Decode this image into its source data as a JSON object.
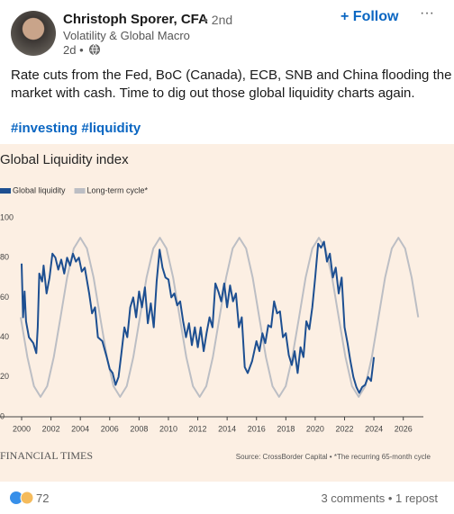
{
  "post": {
    "author": "Christoph Sporer, CFA",
    "degree": "• 2nd",
    "headline": "Volatility & Global Macro",
    "time": "2d •",
    "follow": "+ Follow",
    "text": [
      "Rate cuts from the Fed, BoC (Canada), ECB, SNB and China flooding the",
      "market with cash. Time to dig out those global liquidity charts again."
    ],
    "hashtags": "#investing #liquidity",
    "reactions": 72,
    "engagement": "3 comments • 1 repost"
  },
  "chart_data": {
    "type": "line",
    "title": "Global Liquidity index",
    "xlim": [
      2000,
      2027
    ],
    "ylim": [
      0,
      100
    ],
    "xticks": [
      2000,
      2002,
      2004,
      2006,
      2008,
      2010,
      2012,
      2014,
      2016,
      2018,
      2020,
      2022,
      2024,
      2026
    ],
    "yticks": [
      0,
      20,
      40,
      60,
      80,
      100
    ],
    "grid": false,
    "series": [
      {
        "name": "Global liquidity",
        "color": "#1d4f91",
        "x": [
          2000.0,
          2000.1,
          2000.2,
          2000.3,
          2000.5,
          2000.8,
          2001.0,
          2001.1,
          2001.2,
          2001.4,
          2001.5,
          2001.7,
          2001.9,
          2002.1,
          2002.3,
          2002.5,
          2002.7,
          2002.9,
          2003.1,
          2003.3,
          2003.5,
          2003.7,
          2003.9,
          2004.1,
          2004.3,
          2004.6,
          2004.8,
          2005.0,
          2005.2,
          2005.5,
          2005.8,
          2006.0,
          2006.2,
          2006.4,
          2006.6,
          2006.8,
          2007.0,
          2007.2,
          2007.4,
          2007.6,
          2007.8,
          2008.0,
          2008.2,
          2008.4,
          2008.6,
          2008.8,
          2009.0,
          2009.2,
          2009.4,
          2009.6,
          2009.8,
          2010.0,
          2010.2,
          2010.4,
          2010.6,
          2010.8,
          2011.0,
          2011.2,
          2011.4,
          2011.6,
          2011.8,
          2012.0,
          2012.2,
          2012.4,
          2012.6,
          2012.8,
          2013.0,
          2013.2,
          2013.4,
          2013.6,
          2013.8,
          2014.0,
          2014.2,
          2014.4,
          2014.6,
          2014.8,
          2015.0,
          2015.2,
          2015.4,
          2015.7,
          2016.0,
          2016.2,
          2016.4,
          2016.6,
          2016.8,
          2017.0,
          2017.2,
          2017.4,
          2017.6,
          2017.8,
          2018.0,
          2018.2,
          2018.4,
          2018.6,
          2018.8,
          2019.0,
          2019.2,
          2019.4,
          2019.6,
          2019.8,
          2020.0,
          2020.2,
          2020.4,
          2020.6,
          2020.8,
          2021.0,
          2021.2,
          2021.4,
          2021.6,
          2021.8,
          2022.0,
          2022.2,
          2022.4,
          2022.6,
          2022.8,
          2023.0,
          2023.2,
          2023.4,
          2023.6,
          2023.8,
          2024.0
        ],
        "values": [
          77,
          50,
          63,
          48,
          40,
          37,
          32,
          45,
          72,
          68,
          76,
          62,
          70,
          82,
          80,
          74,
          79,
          72,
          80,
          76,
          82,
          78,
          80,
          73,
          75,
          62,
          52,
          55,
          40,
          38,
          30,
          24,
          22,
          16,
          20,
          32,
          45,
          40,
          55,
          60,
          50,
          63,
          55,
          65,
          47,
          57,
          45,
          68,
          84,
          75,
          70,
          69,
          60,
          62,
          56,
          58,
          48,
          40,
          47,
          36,
          45,
          35,
          45,
          33,
          42,
          50,
          45,
          67,
          63,
          58,
          67,
          55,
          66,
          58,
          62,
          45,
          50,
          25,
          22,
          28,
          38,
          33,
          42,
          37,
          46,
          45,
          58,
          52,
          53,
          40,
          42,
          31,
          26,
          33,
          22,
          35,
          30,
          48,
          44,
          55,
          70,
          87,
          85,
          88,
          78,
          82,
          70,
          75,
          62,
          70,
          45,
          37,
          28,
          20,
          15,
          12,
          15,
          16,
          20,
          18,
          30
        ]
      },
      {
        "name": "Long-term cycle*",
        "color": "#bcbec4",
        "x": [
          1999.94,
          2000.39,
          2000.84,
          2001.29,
          2001.74,
          2002.19,
          2002.65,
          2003.1,
          2003.55,
          2004.0,
          2004.45,
          2004.9,
          2005.35,
          2005.81,
          2006.26,
          2006.71,
          2007.16,
          2007.61,
          2008.06,
          2008.51,
          2008.97,
          2009.42,
          2009.87,
          2010.32,
          2010.77,
          2011.22,
          2011.67,
          2012.13,
          2012.58,
          2013.03,
          2013.48,
          2013.93,
          2014.38,
          2014.83,
          2015.29,
          2015.74,
          2016.19,
          2016.64,
          2017.09,
          2017.54,
          2017.99,
          2018.44,
          2018.9,
          2019.35,
          2019.8,
          2020.25,
          2020.7,
          2021.15,
          2021.6,
          2022.06,
          2022.51,
          2022.96,
          2023.41,
          2023.86,
          2024.31,
          2024.76,
          2025.22,
          2025.67,
          2026.12,
          2026.57,
          2027.02
        ],
        "values": [
          50,
          30,
          15.4,
          10,
          15.4,
          30,
          50,
          70,
          84.6,
          90,
          84.6,
          70,
          50,
          30,
          15.4,
          10,
          15.4,
          30,
          50,
          70,
          84.6,
          90,
          84.6,
          70,
          50,
          30,
          15.4,
          10,
          15.4,
          30,
          50,
          70,
          84.6,
          90,
          84.6,
          70,
          50,
          30,
          15.4,
          10,
          15.4,
          30,
          50,
          70,
          84.6,
          90,
          84.6,
          70,
          50,
          30,
          15.4,
          10,
          15.4,
          30,
          50,
          70,
          84.6,
          90,
          84.6,
          70,
          50
        ]
      }
    ],
    "brand": "FINANCIAL TIMES",
    "source": "Source: CrossBorder Capital • *The recurring 65-month cycle"
  }
}
